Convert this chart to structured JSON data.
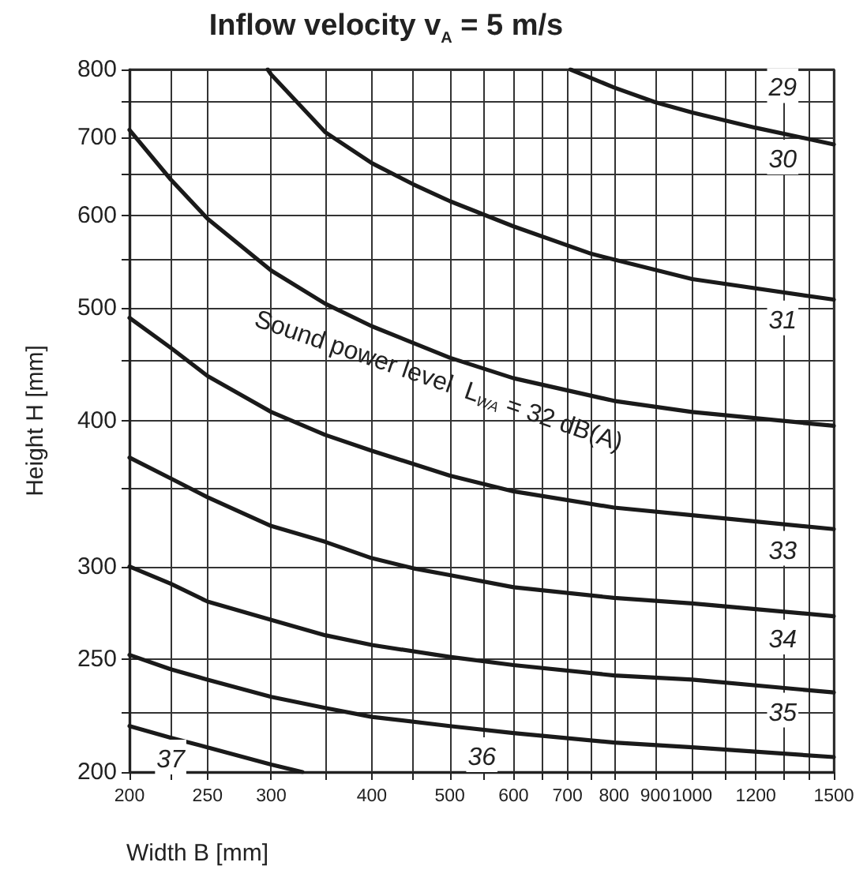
{
  "chart_data": {
    "type": "line",
    "title": "Inflow velocity v$_{A}$ = 5 m/s",
    "xlabel": "Width B [mm]",
    "ylabel": "Height H [mm]",
    "log": "xy",
    "grid": true,
    "marker": "none",
    "line_style": "solid",
    "xlim": [
      200,
      1500
    ],
    "ylim": [
      200,
      800
    ],
    "xticks": [
      200,
      {
        "value": 225,
        "label": null
      },
      250,
      300,
      {
        "value": 350,
        "label": null
      },
      400,
      {
        "value": 450,
        "label": null
      },
      500,
      {
        "value": 550,
        "label": null
      },
      600,
      {
        "value": 650,
        "label": null
      },
      700,
      {
        "value": 750,
        "label": null
      },
      800,
      900,
      1000,
      {
        "value": 1100,
        "label": null
      },
      1200,
      {
        "value": 1300,
        "label": null
      },
      {
        "value": 1400,
        "label": null
      },
      1500
    ],
    "yticks": [
      200,
      {
        "value": 225,
        "label": null
      },
      250,
      300,
      {
        "value": 350,
        "label": null
      },
      400,
      {
        "value": 450,
        "label": null
      },
      500,
      {
        "value": 550,
        "label": null
      },
      600,
      {
        "value": 650,
        "label": null
      },
      700,
      {
        "value": 750,
        "label": null
      },
      800
    ],
    "series": [
      {
        "color": "#1a1a1a",
        "x": [
          706,
          800,
          900,
          1000,
          1200,
          1500
        ],
        "values": [
          800,
          772,
          750,
          735,
          713,
          690
        ]
      },
      {
        "color": "#1a1a1a",
        "x": [
          297,
          300,
          350,
          400,
          450,
          500,
          600,
          750,
          1000,
          1500
        ],
        "values": [
          800,
          792,
          707,
          665,
          638,
          617,
          587,
          556,
          529,
          508
        ]
      },
      {
        "color": "#1a1a1a",
        "x": [
          200,
          225,
          250,
          300,
          350,
          400,
          500,
          600,
          800,
          1000,
          1500
        ],
        "values": [
          710,
          644,
          596,
          538,
          504,
          482,
          453,
          435,
          416,
          407,
          396
        ]
      },
      {
        "color": "#1a1a1a",
        "x": [
          200,
          225,
          250,
          300,
          350,
          400,
          500,
          600,
          800,
          1000,
          1500
        ],
        "values": [
          490,
          462,
          437,
          407,
          389,
          377,
          359,
          348,
          337,
          332,
          323
        ]
      },
      {
        "color": "#1a1a1a",
        "x": [
          200,
          225,
          250,
          300,
          350,
          400,
          450,
          500,
          600,
          800,
          1000,
          1500
        ],
        "values": [
          372,
          357,
          344,
          325,
          315,
          305,
          299,
          295,
          288,
          282,
          279,
          272
        ]
      },
      {
        "color": "#1a1a1a",
        "x": [
          200,
          225,
          250,
          300,
          350,
          400,
          500,
          600,
          800,
          1000,
          1500
        ],
        "values": [
          300,
          290,
          280,
          270,
          262,
          257,
          251,
          247,
          242,
          240,
          234
        ]
      },
      {
        "color": "#1a1a1a",
        "x": [
          200,
          225,
          250,
          300,
          350,
          400,
          500,
          600,
          800,
          1000,
          1500
        ],
        "values": [
          252,
          245,
          240,
          232,
          227,
          223,
          219,
          216,
          212,
          210,
          206
        ]
      },
      {
        "color": "#1a1a1a",
        "x": [
          200,
          225,
          250,
          300,
          328
        ],
        "values": [
          219,
          214,
          210,
          203,
          200
        ]
      }
    ],
    "annotations": [
      {
        "text": "29",
        "x": 1296,
        "y": 775
      },
      {
        "text": "30",
        "x": 1296,
        "y": 673
      },
      {
        "text": "31",
        "x": 1296,
        "y": 490
      },
      "Sound power level  L$_{WA}$ = 32 dB(A)",
      {
        "text": "33",
        "x": 1296,
        "y": 311
      },
      {
        "text": "34",
        "x": 1296,
        "y": 261
      },
      {
        "text": "35",
        "x": 1296,
        "y": 226
      },
      {
        "text": "36",
        "x": 548,
        "y": 207
      },
      {
        "text": "37",
        "x": 225,
        "y": 206
      }
    ]
  }
}
